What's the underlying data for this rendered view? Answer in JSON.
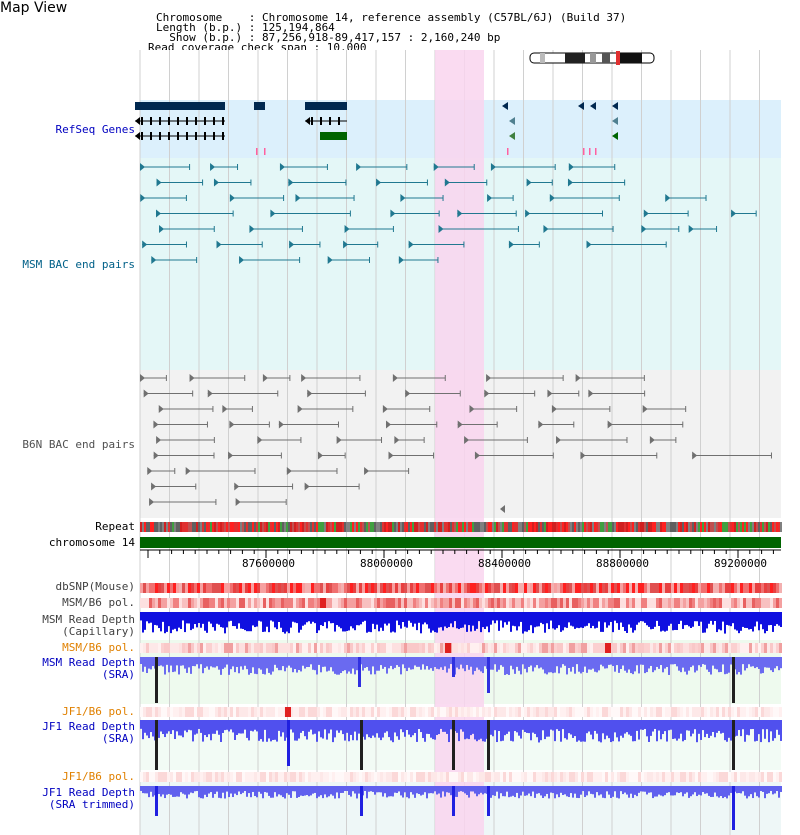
{
  "title": "Map View",
  "header": {
    "line1": "Chromosome    : Chromosome 14, reference assembly (C57BL/6J) (Build 37)",
    "line2": "Length (b.p.) : 125,194,864",
    "line3": "  Show (b.p.) : 87,256,918-89,417,157 : 2,160,240 bp",
    "line4": "Read coverage check span : 10,000"
  },
  "tracks": {
    "refseq": "RefSeq Genes",
    "msm_bac": "MSM BAC end pairs",
    "b6n_bac": "B6N BAC end pairs",
    "repeat": "Repeat",
    "chromosome": "chromosome 14",
    "dbsnp": "dbSNP(Mouse)",
    "msm_b6_pol_1": "MSM/B6 pol.",
    "msm_depth_cap": "MSM Read Depth\n(Capillary)",
    "msm_b6_pol_2": "MSM/B6 pol.",
    "msm_depth_sra": "MSM Read Depth\n(SRA)",
    "jf1_b6_pol_1": "JF1/B6 pol.",
    "jf1_depth_sra": "JF1 Read Depth\n(SRA)",
    "jf1_b6_pol_2": "JF1/B6 pol.",
    "jf1_depth_trim": "JF1 Read Depth\n(SRA trimmed)"
  },
  "axis_ticks": [
    "87600000",
    "88000000",
    "88400000",
    "88800000",
    "89200000"
  ],
  "colors": {
    "refseq_label": "#0000c0",
    "msm_bac_label": "#006088",
    "b6n_bac_label": "#505050",
    "pol_label": "#e08000",
    "depth_label": "#0000c0",
    "highlight": "#f9d5ef",
    "chromosome_bar": "#006400"
  }
}
